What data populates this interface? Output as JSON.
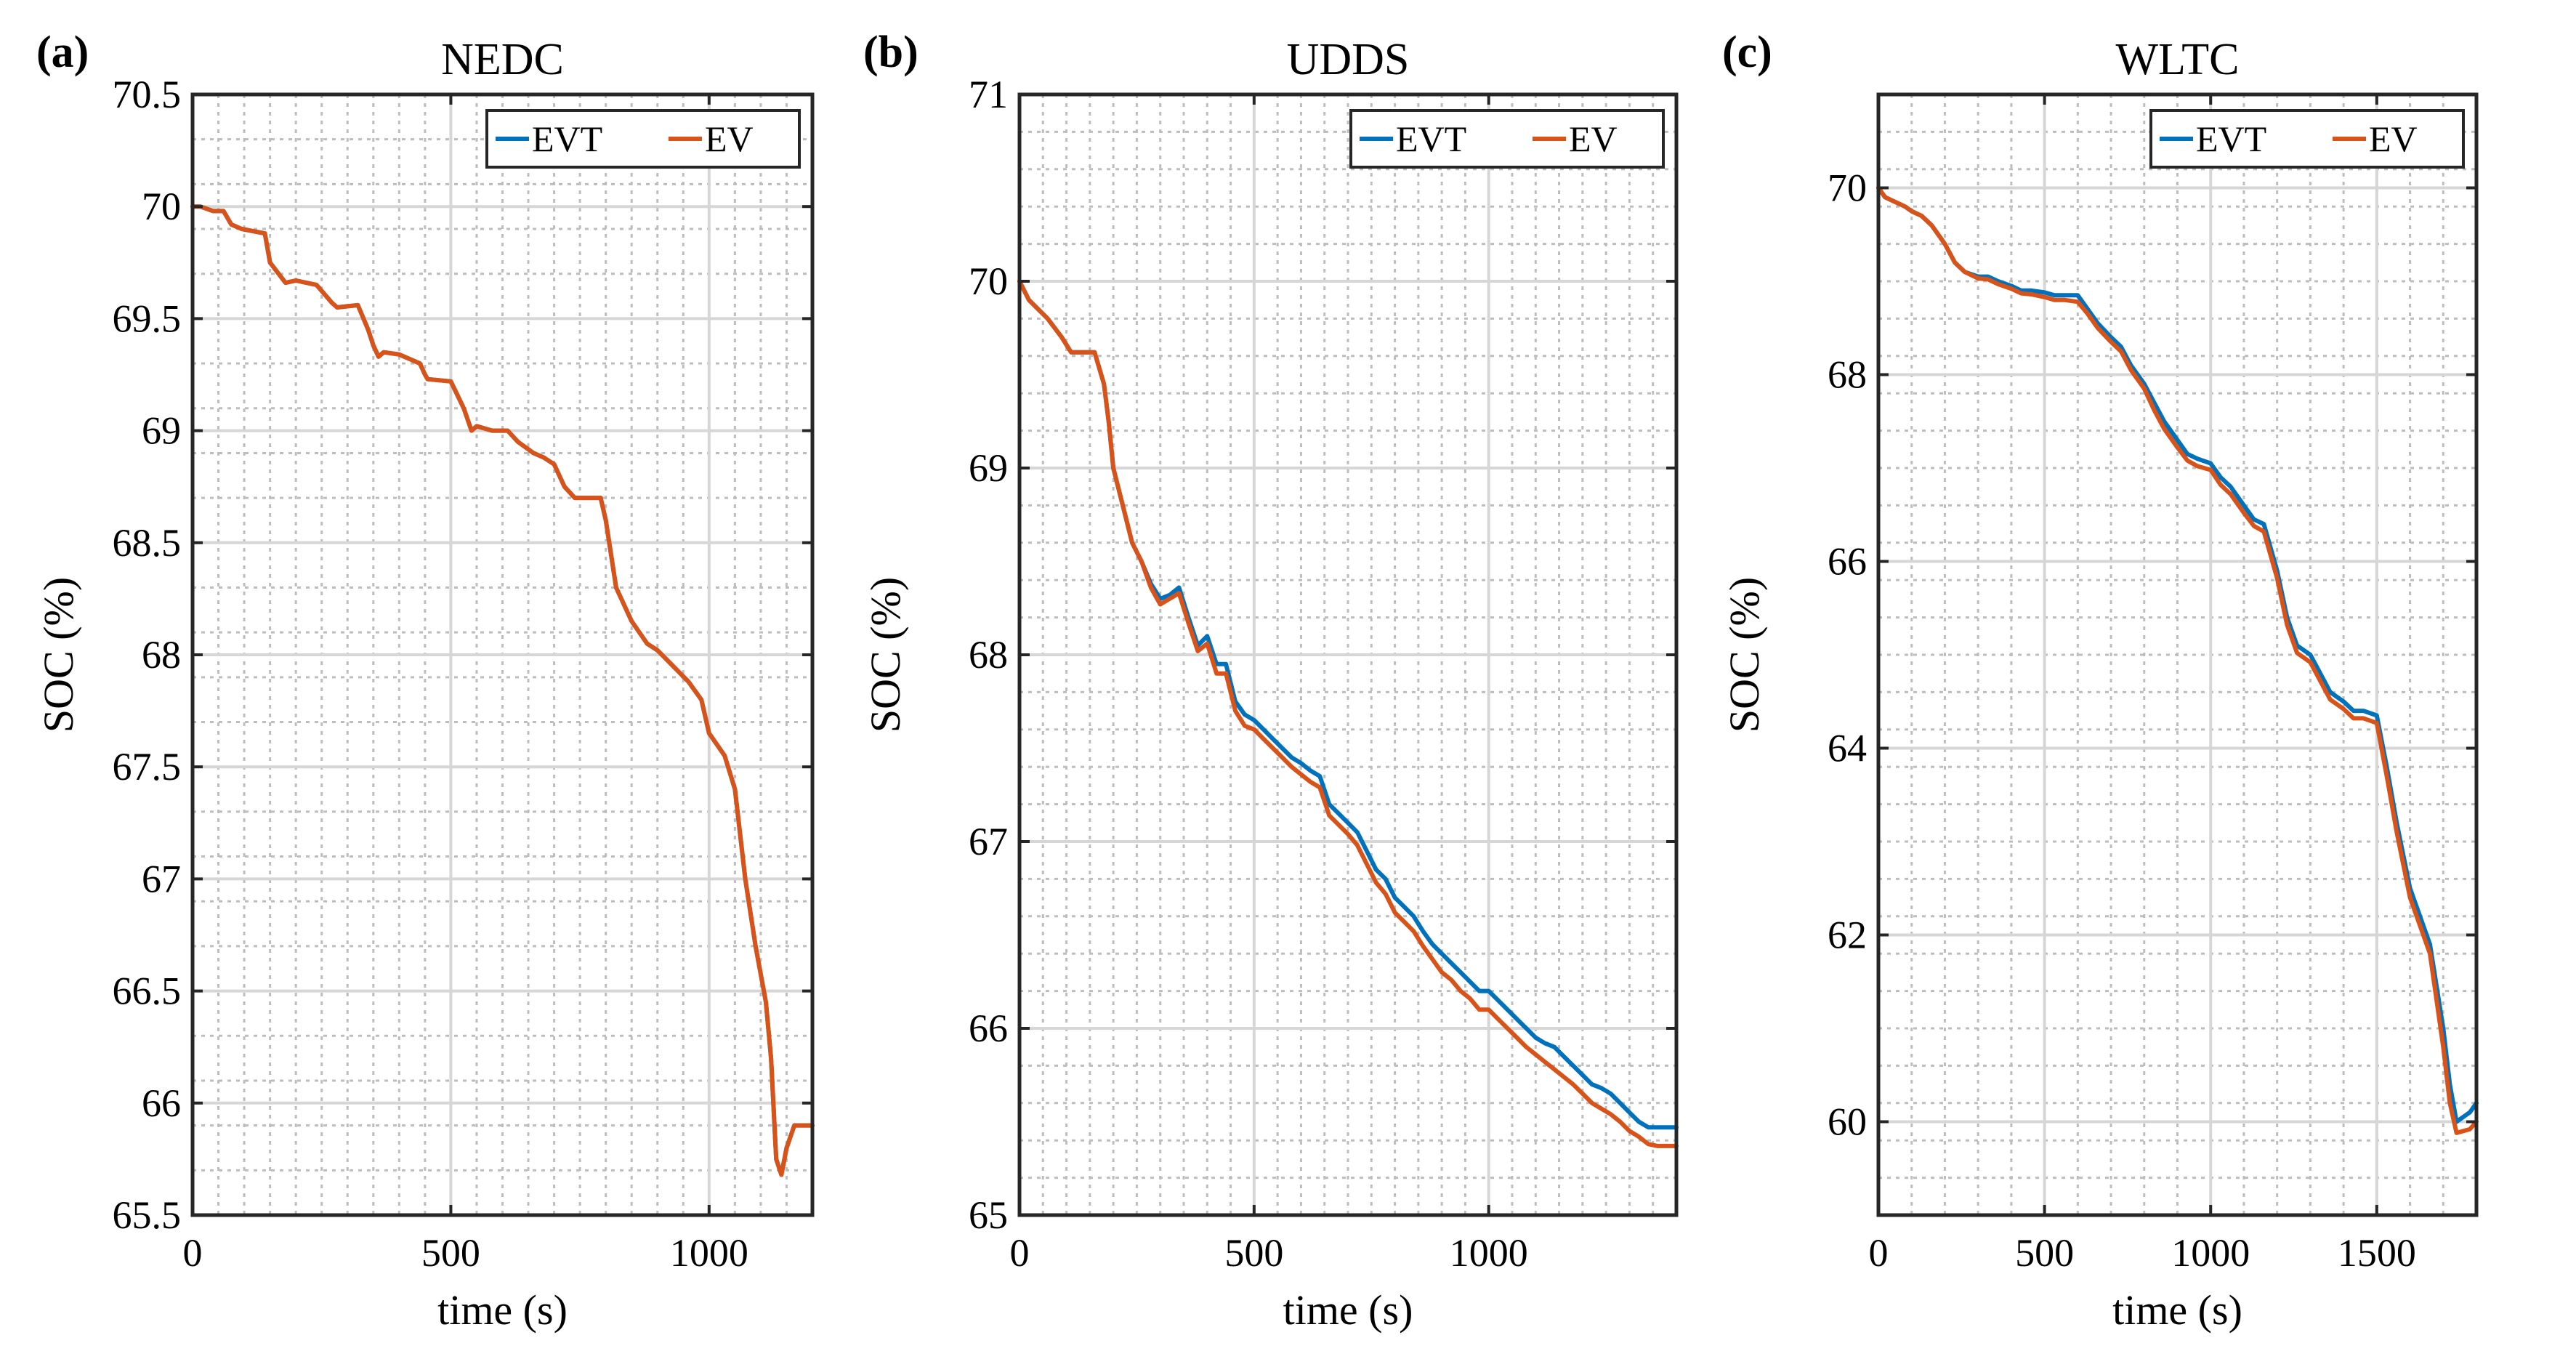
{
  "chart_data": [
    {
      "type": "line",
      "panel_label": "(a)",
      "title": "NEDC",
      "xlabel": "time (s)",
      "ylabel": "SOC (%)",
      "xlim": [
        0,
        1200
      ],
      "ylim": [
        65.5,
        70.5
      ],
      "xticks": [
        0,
        500,
        1000
      ],
      "xtick_labels": [
        "0",
        "500",
        "1000"
      ],
      "yticks": [
        65.5,
        66,
        66.5,
        67,
        67.5,
        68,
        68.5,
        69,
        69.5,
        70,
        70.5
      ],
      "ytick_labels": [
        "65.5",
        "66",
        "66.5",
        "67",
        "67.5",
        "68",
        "68.5",
        "69",
        "69.5",
        "70",
        "70.5"
      ],
      "grid": true,
      "legend": "top-right",
      "series": [
        {
          "name": "EVT",
          "color": "#0072BD",
          "x": [
            0,
            15,
            40,
            60,
            75,
            95,
            140,
            150,
            180,
            200,
            240,
            270,
            280,
            320,
            340,
            350,
            360,
            370,
            400,
            420,
            440,
            450,
            455,
            500,
            525,
            540,
            550,
            580,
            610,
            630,
            660,
            680,
            700,
            720,
            740,
            750,
            790,
            800,
            820,
            850,
            880,
            900,
            930,
            960,
            985,
            1000,
            1030,
            1050,
            1070,
            1090,
            1110,
            1120,
            1130,
            1140,
            1150,
            1165,
            1200
          ],
          "values": [
            70.0,
            70.0,
            69.98,
            69.98,
            69.92,
            69.9,
            69.88,
            69.75,
            69.66,
            69.67,
            69.65,
            69.57,
            69.55,
            69.56,
            69.45,
            69.38,
            69.33,
            69.35,
            69.34,
            69.32,
            69.3,
            69.25,
            69.23,
            69.22,
            69.1,
            69.0,
            69.02,
            69.0,
            69.0,
            68.95,
            68.9,
            68.88,
            68.85,
            68.75,
            68.7,
            68.7,
            68.7,
            68.6,
            68.3,
            68.15,
            68.05,
            68.02,
            67.95,
            67.88,
            67.8,
            67.65,
            67.55,
            67.4,
            67.0,
            66.7,
            66.45,
            66.2,
            65.75,
            65.68,
            65.8,
            65.9,
            65.9
          ]
        },
        {
          "name": "EV",
          "color": "#D95319",
          "x": [
            0,
            15,
            40,
            60,
            75,
            95,
            140,
            150,
            180,
            200,
            240,
            270,
            280,
            320,
            340,
            350,
            360,
            370,
            400,
            420,
            440,
            450,
            455,
            500,
            525,
            540,
            550,
            580,
            610,
            630,
            660,
            680,
            700,
            720,
            740,
            750,
            790,
            800,
            820,
            850,
            880,
            900,
            930,
            960,
            985,
            1000,
            1030,
            1050,
            1070,
            1090,
            1110,
            1120,
            1130,
            1140,
            1150,
            1165,
            1200
          ],
          "values": [
            70.0,
            70.0,
            69.98,
            69.98,
            69.92,
            69.9,
            69.88,
            69.75,
            69.66,
            69.67,
            69.65,
            69.57,
            69.55,
            69.56,
            69.45,
            69.38,
            69.33,
            69.35,
            69.34,
            69.32,
            69.3,
            69.25,
            69.23,
            69.22,
            69.1,
            69.0,
            69.02,
            69.0,
            69.0,
            68.95,
            68.9,
            68.88,
            68.85,
            68.75,
            68.7,
            68.7,
            68.7,
            68.6,
            68.3,
            68.15,
            68.05,
            68.02,
            67.95,
            67.88,
            67.8,
            67.65,
            67.55,
            67.4,
            67.0,
            66.7,
            66.45,
            66.2,
            65.75,
            65.68,
            65.8,
            65.9,
            65.9
          ]
        }
      ]
    },
    {
      "type": "line",
      "panel_label": "(b)",
      "title": "UDDS",
      "xlabel": "time (s)",
      "ylabel": "SOC (%)",
      "xlim": [
        0,
        1400
      ],
      "ylim": [
        65,
        71
      ],
      "xticks": [
        0,
        500,
        1000
      ],
      "xtick_labels": [
        "0",
        "500",
        "1000"
      ],
      "yticks": [
        65,
        66,
        67,
        68,
        69,
        70,
        71
      ],
      "ytick_labels": [
        "65",
        "66",
        "67",
        "68",
        "69",
        "70",
        "71"
      ],
      "grid": true,
      "legend": "top-right",
      "series": [
        {
          "name": "EVT",
          "color": "#0072BD",
          "x": [
            0,
            20,
            60,
            90,
            110,
            130,
            160,
            180,
            190,
            200,
            220,
            240,
            260,
            280,
            300,
            320,
            340,
            360,
            380,
            400,
            420,
            440,
            460,
            480,
            500,
            520,
            540,
            560,
            580,
            600,
            620,
            640,
            660,
            680,
            700,
            720,
            740,
            760,
            780,
            800,
            820,
            840,
            860,
            880,
            900,
            920,
            940,
            960,
            980,
            1000,
            1020,
            1040,
            1060,
            1080,
            1100,
            1120,
            1140,
            1160,
            1180,
            1200,
            1220,
            1240,
            1260,
            1280,
            1300,
            1320,
            1340,
            1360,
            1380,
            1400
          ],
          "values": [
            70.0,
            69.9,
            69.8,
            69.7,
            69.62,
            69.62,
            69.62,
            69.45,
            69.25,
            69.0,
            68.8,
            68.6,
            68.5,
            68.38,
            68.3,
            68.32,
            68.36,
            68.2,
            68.05,
            68.1,
            67.95,
            67.95,
            67.75,
            67.68,
            67.65,
            67.6,
            67.55,
            67.5,
            67.45,
            67.42,
            67.38,
            67.35,
            67.2,
            67.15,
            67.1,
            67.05,
            66.95,
            66.85,
            66.8,
            66.7,
            66.65,
            66.6,
            66.52,
            66.45,
            66.4,
            66.35,
            66.3,
            66.25,
            66.2,
            66.2,
            66.15,
            66.1,
            66.05,
            66.0,
            65.95,
            65.92,
            65.9,
            65.85,
            65.8,
            65.75,
            65.7,
            65.68,
            65.65,
            65.6,
            65.55,
            65.5,
            65.47,
            65.47,
            65.47,
            65.47
          ]
        },
        {
          "name": "EV",
          "color": "#D95319",
          "x": [
            0,
            20,
            60,
            90,
            110,
            130,
            160,
            180,
            190,
            200,
            220,
            240,
            260,
            280,
            300,
            320,
            340,
            360,
            380,
            400,
            420,
            440,
            460,
            480,
            500,
            520,
            540,
            560,
            580,
            600,
            620,
            640,
            660,
            680,
            700,
            720,
            740,
            760,
            780,
            800,
            820,
            840,
            860,
            880,
            900,
            920,
            940,
            960,
            980,
            1000,
            1020,
            1040,
            1060,
            1080,
            1100,
            1120,
            1140,
            1160,
            1180,
            1200,
            1220,
            1240,
            1260,
            1280,
            1300,
            1320,
            1340,
            1360,
            1380,
            1400
          ],
          "values": [
            70.0,
            69.9,
            69.8,
            69.7,
            69.62,
            69.62,
            69.62,
            69.45,
            69.25,
            69.0,
            68.8,
            68.6,
            68.5,
            68.36,
            68.27,
            68.3,
            68.33,
            68.17,
            68.02,
            68.06,
            67.9,
            67.9,
            67.7,
            67.62,
            67.6,
            67.55,
            67.5,
            67.45,
            67.4,
            67.36,
            67.32,
            67.29,
            67.14,
            67.09,
            67.04,
            66.98,
            66.88,
            66.78,
            66.72,
            66.62,
            66.57,
            66.52,
            66.44,
            66.37,
            66.3,
            66.26,
            66.2,
            66.16,
            66.1,
            66.1,
            66.05,
            66.0,
            65.95,
            65.9,
            65.86,
            65.82,
            65.78,
            65.74,
            65.7,
            65.65,
            65.6,
            65.57,
            65.54,
            65.5,
            65.45,
            65.42,
            65.38,
            65.37,
            65.37,
            65.37
          ]
        }
      ]
    },
    {
      "type": "line",
      "panel_label": "(c)",
      "title": "WLTC",
      "xlabel": "time (s)",
      "ylabel": "SOC (%)",
      "xlim": [
        0,
        1800
      ],
      "ylim": [
        59,
        71
      ],
      "xticks": [
        0,
        500,
        1000,
        1500
      ],
      "xtick_labels": [
        "0",
        "500",
        "1000",
        "1500"
      ],
      "yticks": [
        60,
        62,
        64,
        66,
        68,
        70
      ],
      "ytick_labels": [
        "60",
        "62",
        "64",
        "66",
        "68",
        "70"
      ],
      "grid": true,
      "legend": "top-right",
      "series": [
        {
          "name": "EVT",
          "color": "#0072BD",
          "x": [
            0,
            20,
            50,
            80,
            100,
            130,
            160,
            200,
            230,
            260,
            300,
            330,
            360,
            400,
            430,
            460,
            500,
            530,
            560,
            600,
            630,
            660,
            700,
            730,
            760,
            800,
            830,
            860,
            900,
            930,
            960,
            1000,
            1030,
            1060,
            1100,
            1130,
            1160,
            1200,
            1230,
            1260,
            1300,
            1330,
            1360,
            1400,
            1430,
            1460,
            1500,
            1530,
            1560,
            1600,
            1630,
            1660,
            1700,
            1720,
            1740,
            1760,
            1780,
            1800
          ],
          "values": [
            70.0,
            69.9,
            69.85,
            69.8,
            69.75,
            69.7,
            69.6,
            69.4,
            69.2,
            69.1,
            69.05,
            69.05,
            69.0,
            68.95,
            68.9,
            68.9,
            68.88,
            68.85,
            68.85,
            68.85,
            68.7,
            68.55,
            68.4,
            68.3,
            68.1,
            67.9,
            67.7,
            67.5,
            67.3,
            67.15,
            67.1,
            67.05,
            66.9,
            66.8,
            66.6,
            66.45,
            66.4,
            65.9,
            65.4,
            65.1,
            65.0,
            64.8,
            64.6,
            64.5,
            64.4,
            64.4,
            64.35,
            63.8,
            63.2,
            62.5,
            62.2,
            61.9,
            61.0,
            60.4,
            60.0,
            60.05,
            60.1,
            60.2
          ]
        },
        {
          "name": "EV",
          "color": "#D95319",
          "x": [
            0,
            20,
            50,
            80,
            100,
            130,
            160,
            200,
            230,
            260,
            300,
            330,
            360,
            400,
            430,
            460,
            500,
            530,
            560,
            600,
            630,
            660,
            700,
            730,
            760,
            800,
            830,
            860,
            900,
            930,
            960,
            1000,
            1030,
            1060,
            1100,
            1130,
            1160,
            1200,
            1230,
            1260,
            1300,
            1330,
            1360,
            1400,
            1430,
            1460,
            1500,
            1530,
            1560,
            1600,
            1630,
            1660,
            1700,
            1720,
            1740,
            1760,
            1780,
            1800
          ],
          "values": [
            70.0,
            69.9,
            69.85,
            69.8,
            69.75,
            69.7,
            69.6,
            69.4,
            69.2,
            69.1,
            69.03,
            69.02,
            68.97,
            68.92,
            68.87,
            68.86,
            68.83,
            68.8,
            68.8,
            68.78,
            68.65,
            68.5,
            68.35,
            68.25,
            68.05,
            67.85,
            67.62,
            67.42,
            67.22,
            67.08,
            67.02,
            66.98,
            66.82,
            66.72,
            66.52,
            66.38,
            66.32,
            65.82,
            65.32,
            65.02,
            64.92,
            64.72,
            64.52,
            64.42,
            64.32,
            64.32,
            64.27,
            63.7,
            63.1,
            62.4,
            62.1,
            61.8,
            60.8,
            60.2,
            59.88,
            59.9,
            59.92,
            60.0
          ]
        }
      ]
    }
  ]
}
